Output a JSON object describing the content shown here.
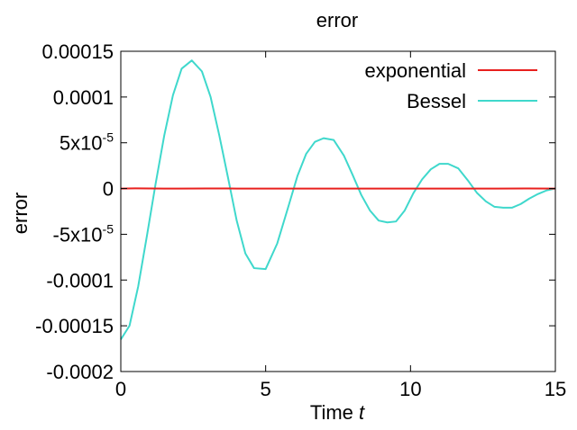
{
  "chart_data": {
    "type": "line",
    "title": "error",
    "xlabel_text": "Time ",
    "xlabel_var": "t",
    "ylabel": "error",
    "xlim": [
      0,
      15
    ],
    "ylim": [
      -0.0002,
      0.00015
    ],
    "x_ticks": [
      {
        "value": 0,
        "label": "0"
      },
      {
        "value": 5,
        "label": "5"
      },
      {
        "value": 10,
        "label": "10"
      },
      {
        "value": 15,
        "label": "15"
      }
    ],
    "y_ticks": [
      {
        "value": 0.00015,
        "label": "0.00015"
      },
      {
        "value": 0.0001,
        "label": "0.0001"
      },
      {
        "value": 5e-05,
        "label": "5x10",
        "sup": "-5"
      },
      {
        "value": 0,
        "label": "0"
      },
      {
        "value": -5e-05,
        "label": "-5x10",
        "sup": "-5"
      },
      {
        "value": -0.0001,
        "label": "-0.0001"
      },
      {
        "value": -0.00015,
        "label": "-0.00015"
      },
      {
        "value": -0.0002,
        "label": "-0.0002"
      }
    ],
    "grid": false,
    "legend_position": "top-right",
    "series": [
      {
        "name": "exponential",
        "color": "#e8201e",
        "x": [
          0,
          0.5,
          1,
          1.5,
          2,
          3,
          4,
          5,
          6,
          7,
          8,
          9,
          10,
          11,
          12,
          13,
          14,
          15
        ],
        "y": [
          0,
          2e-07,
          1e-07,
          -1e-07,
          0,
          1e-07,
          0,
          0,
          0,
          0,
          0,
          0,
          0,
          0,
          0,
          0,
          1e-07,
          0
        ]
      },
      {
        "name": "Bessel",
        "color": "#3fd8cc",
        "x": [
          0,
          0.3,
          0.6,
          0.9,
          1.2,
          1.5,
          1.8,
          2.1,
          2.45,
          2.8,
          3.1,
          3.4,
          3.7,
          4.0,
          4.3,
          4.6,
          5.0,
          5.4,
          5.8,
          6.1,
          6.4,
          6.7,
          7.0,
          7.35,
          7.7,
          8.0,
          8.3,
          8.6,
          8.9,
          9.2,
          9.5,
          9.8,
          10.1,
          10.4,
          10.7,
          11.0,
          11.3,
          11.65,
          12.0,
          12.3,
          12.6,
          12.9,
          13.2,
          13.5,
          13.8,
          14.1,
          14.4,
          14.7,
          15.0
        ],
        "y": [
          -0.000165,
          -0.00015,
          -0.000107,
          -5.2e-05,
          5e-06,
          5.8e-05,
          0.000102,
          0.000131,
          0.00014,
          0.000128,
          0.0001,
          5.8e-05,
          1.2e-05,
          -3.5e-05,
          -7.1e-05,
          -8.7e-05,
          -8.8e-05,
          -6e-05,
          -1.8e-05,
          1.4e-05,
          3.8e-05,
          5.1e-05,
          5.5e-05,
          5.3e-05,
          3.6e-05,
          1.5e-05,
          -7e-06,
          -2.4e-05,
          -3.5e-05,
          -3.7e-05,
          -3.6e-05,
          -2.4e-05,
          -5e-06,
          1e-05,
          2.1e-05,
          2.7e-05,
          2.7e-05,
          2.2e-05,
          8e-06,
          -5e-06,
          -1.4e-05,
          -2e-05,
          -2.1e-05,
          -2.1e-05,
          -1.7e-05,
          -1.1e-05,
          -6e-06,
          -2e-06,
          0.0
        ]
      }
    ]
  }
}
